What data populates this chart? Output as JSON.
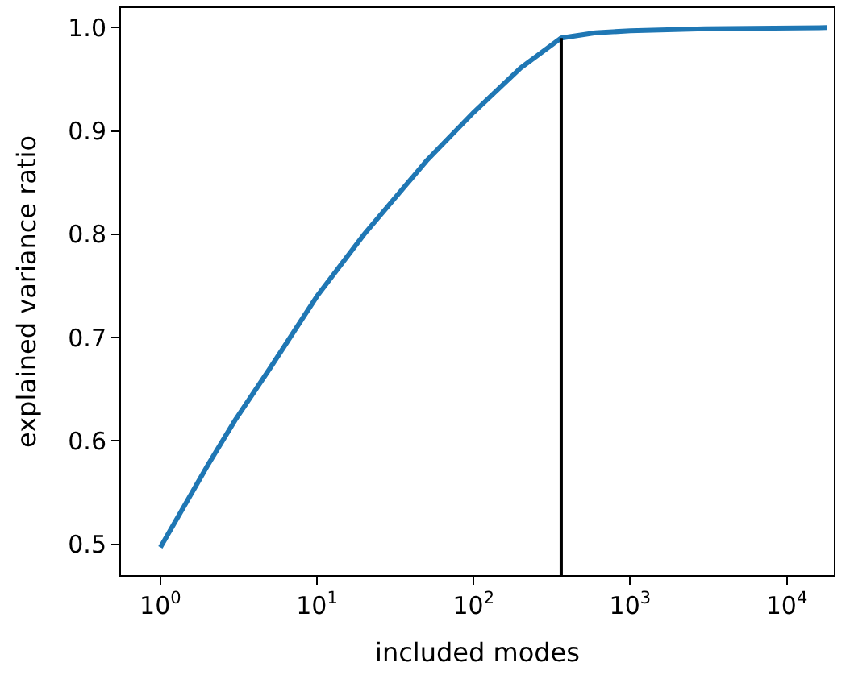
{
  "chart_data": {
    "type": "line",
    "xlabel": "included modes",
    "ylabel": "explained variance ratio",
    "log": "x",
    "marker": "none",
    "xlim": [
      0.56,
      20000
    ],
    "ylim": [
      0.47,
      1.019
    ],
    "xticks": [
      {
        "value": 1,
        "label": "10$^{0}$"
      },
      {
        "value": 10,
        "label": "10$^{1}$"
      },
      {
        "value": 100,
        "label": "10$^{2}$"
      },
      {
        "value": 1000,
        "label": "10$^{3}$"
      },
      {
        "value": 10000,
        "label": "10$^{4}$"
      }
    ],
    "yticks": [
      {
        "value": 0.5,
        "label": "0.5"
      },
      {
        "value": 0.6,
        "label": "0.6"
      },
      {
        "value": 0.7,
        "label": "0.7"
      },
      {
        "value": 0.8,
        "label": "0.8"
      },
      {
        "value": 0.9,
        "label": "0.9"
      },
      {
        "value": 1.0,
        "label": "1.0"
      }
    ],
    "series": [
      {
        "color": "#1f77b4",
        "x": [
          1,
          2,
          3,
          5,
          10,
          20,
          50,
          100,
          200,
          363,
          600,
          1000,
          3000,
          18000
        ],
        "values": [
          0.497,
          0.576,
          0.62,
          0.67,
          0.74,
          0.8,
          0.871,
          0.918,
          0.961,
          0.99,
          0.995,
          0.997,
          0.999,
          1.0
        ]
      },
      {
        "color": "#000000",
        "x": [
          363,
          363
        ],
        "values": [
          0.47,
          0.99
        ]
      }
    ]
  }
}
